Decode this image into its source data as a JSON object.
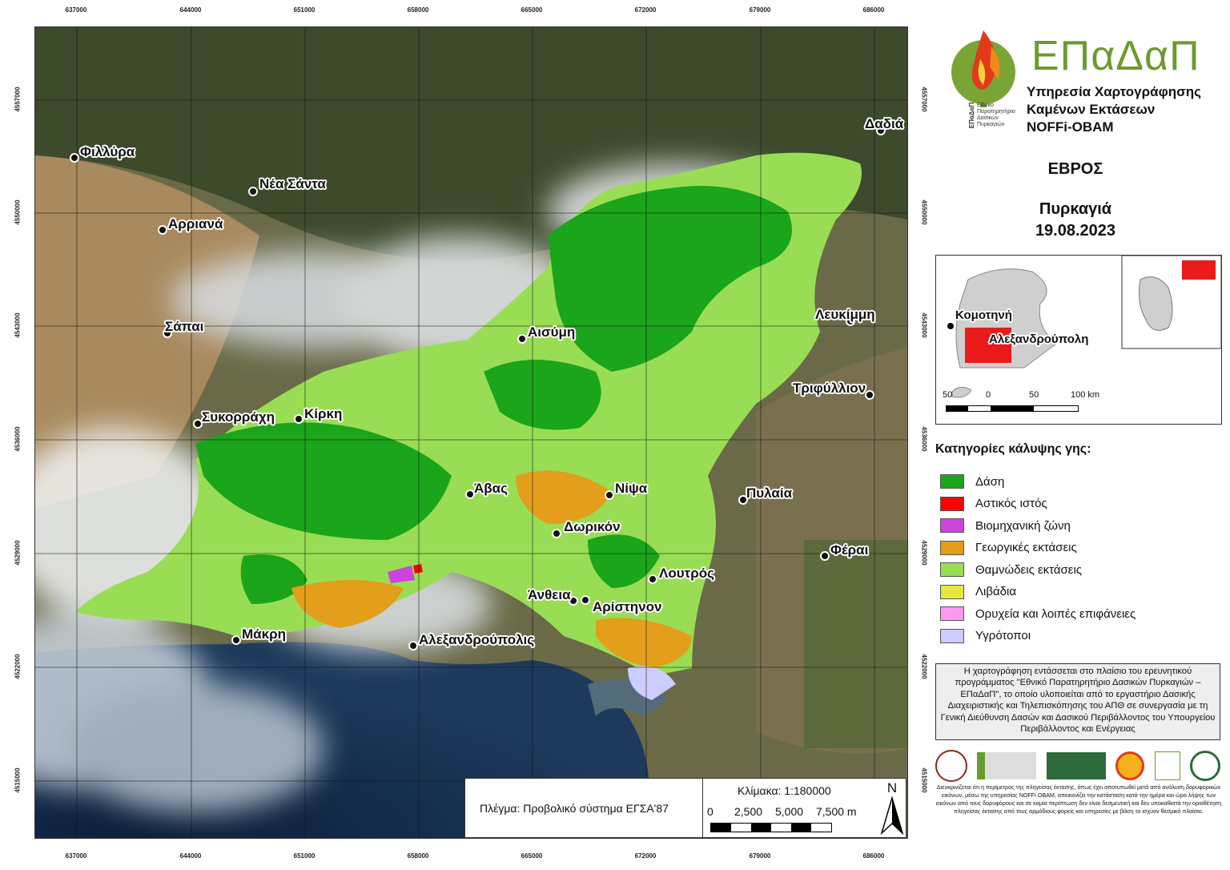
{
  "grid": {
    "x_ticks": [
      "637000",
      "644000",
      "651000",
      "658000",
      "665000",
      "672000",
      "679000",
      "686000"
    ],
    "y_ticks": [
      "4557000",
      "4550000",
      "4543000",
      "4536000",
      "4529000",
      "4522000",
      "4515000"
    ],
    "projection_label": "Πλέγμα: Προβολικό σύστημα ΕΓΣΑ'87"
  },
  "places": [
    {
      "name": "Φιλλύρα"
    },
    {
      "name": "Νέα Σάντα"
    },
    {
      "name": "Αρριανά"
    },
    {
      "name": "Σάπαι"
    },
    {
      "name": "Δαδιά"
    },
    {
      "name": "Λευκίμμη"
    },
    {
      "name": "Τριφύλλιον"
    },
    {
      "name": "Αισύμη"
    },
    {
      "name": "Συκορράχη"
    },
    {
      "name": "Κίρκη"
    },
    {
      "name": "Άβας"
    },
    {
      "name": "Νίψα"
    },
    {
      "name": "Πυλαία"
    },
    {
      "name": "Δωρικόν"
    },
    {
      "name": "Φέραι"
    },
    {
      "name": "Λουτρός"
    },
    {
      "name": "Άνθεια"
    },
    {
      "name": "Αρίστηνον"
    },
    {
      "name": "Μάκρη"
    },
    {
      "name": "Αλεξανδρούπολις"
    }
  ],
  "logo": {
    "name": "ΕΠαΔαΠ",
    "line1": "Υπηρεσία Χαρτογράφησης",
    "line2": "Καμένων Εκτάσεων",
    "line3": "NOFFi-OBAM",
    "small": [
      "ΕΠαΔαΠ",
      "Εθνικό",
      "Παρατηρητήριο",
      "Δασικών",
      "Πυρκαγιών"
    ]
  },
  "region": "ΕΒΡΟΣ",
  "event": "Πυρκαγιά",
  "date": "19.08.2023",
  "inset": {
    "city1": "Κομοτηνή",
    "city2": "Αλεξανδρούπολη",
    "scale_labels": [
      "50",
      "0",
      "50",
      "100 km"
    ]
  },
  "legend": {
    "title": "Κατηγορίες κάλυψης γης:",
    "items": [
      {
        "label": "Δάση",
        "color": "#1aa51a"
      },
      {
        "label": "Αστικός ιστός",
        "color": "#ff0000"
      },
      {
        "label": "Βιομηχανική ζώνη",
        "color": "#cc44dd"
      },
      {
        "label": "Γεωργικές εκτάσεις",
        "color": "#e39e1b"
      },
      {
        "label": "Θαμνώδεις εκτάσεις",
        "color": "#99dd55"
      },
      {
        "label": "Λιβάδια",
        "color": "#e6e640"
      },
      {
        "label": "Ορυχεία και λοιπές επιφάνειες",
        "color": "#ff99ee"
      },
      {
        "label": "Υγρότοποι",
        "color": "#ccccff"
      }
    ]
  },
  "info": "Η χαρτογράφηση εντάσσεται στο πλαίσιο του ερευνητικού προγράμματος \"Εθνικό Παρατηρητήριο Δασικών Πυρκαγιών – ΕΠαΔαΠ\", το οποίο υλοποιείται από το εργαστήριο Δασικής Διαχειριστικής και Τηλεπισκόπησης του ΑΠΘ σε συνεργασία με τη Γενική Διεύθυνση Δασών και Δασικού Περιβάλλοντος του Υπουργείου Περιβάλλοντος και Ενέργειας",
  "disclaimer": "Διευκρινίζεται ότι η περίμετρος της πληγείσας έκτασης, όπως έχει αποτυπωθεί μετά από ανάλυση δορυφορικών εικόνων, μέσω της υπηρεσίας NOFFi OBAM, απεικονίζει την κατάσταση κατά την ημέρα και ώρα λήψης των εικόνων από τους δορυφόρους και σε καμία περίπτωση δεν είναι δεσμευτική και δεν υποκαθιστά την οριοθέτηση πληγείσας έκτασης από τους αρμόδιους φορείς και υπηρεσίες με βάση το ισχύον θεσμικό πλαίσιο.",
  "scale": {
    "label": "Κλίμακα: 1:180000",
    "ticks": [
      "0",
      "2,500",
      "5,000",
      "7,500 m"
    ],
    "north": "N"
  }
}
